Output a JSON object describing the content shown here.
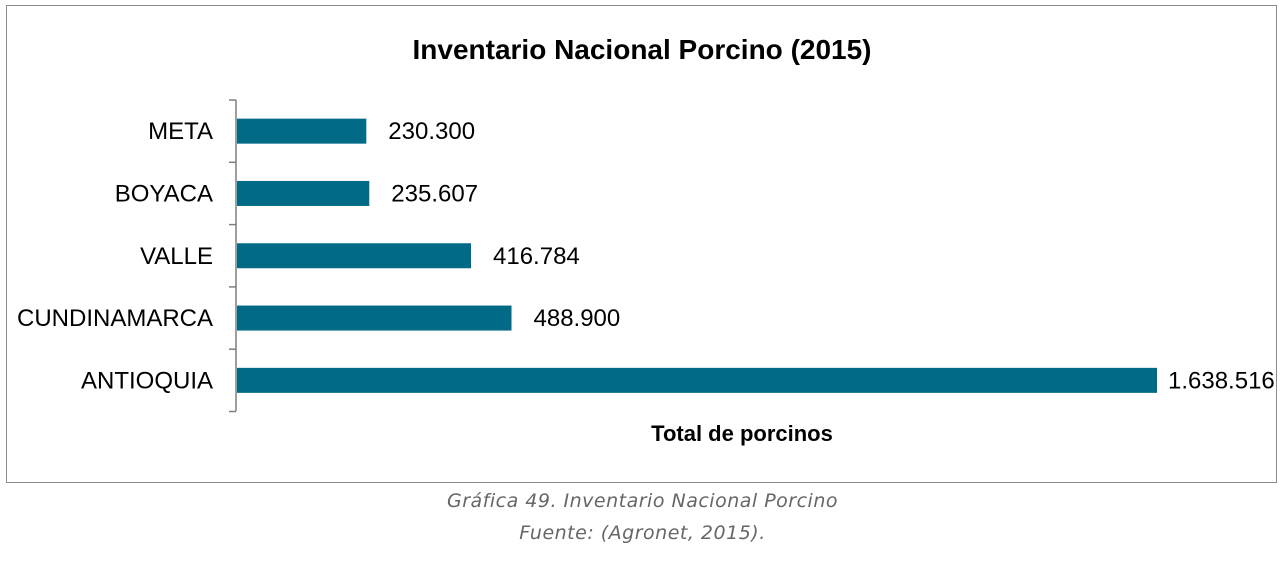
{
  "chart_data": {
    "type": "bar",
    "orientation": "horizontal",
    "title": "Inventario Nacional Porcino (2015)",
    "xlabel": "Total de porcinos",
    "ylabel": "",
    "categories": [
      "META",
      "BOYACA",
      "VALLE",
      "CUNDINAMARCA",
      "ANTIOQUIA"
    ],
    "values": [
      230300,
      235607,
      416784,
      488900,
      1638516
    ],
    "data_labels": [
      "230.300",
      "235.607",
      "416.784",
      "488.900",
      "1.638.516"
    ],
    "bar_color": "#006a87",
    "xlim": [
      0,
      1638516
    ],
    "grid": false,
    "legend": "none"
  },
  "caption": {
    "line1": "Gráfica 49. Inventario Nacional Porcino",
    "line2": "Fuente: (Agronet, 2015)."
  }
}
